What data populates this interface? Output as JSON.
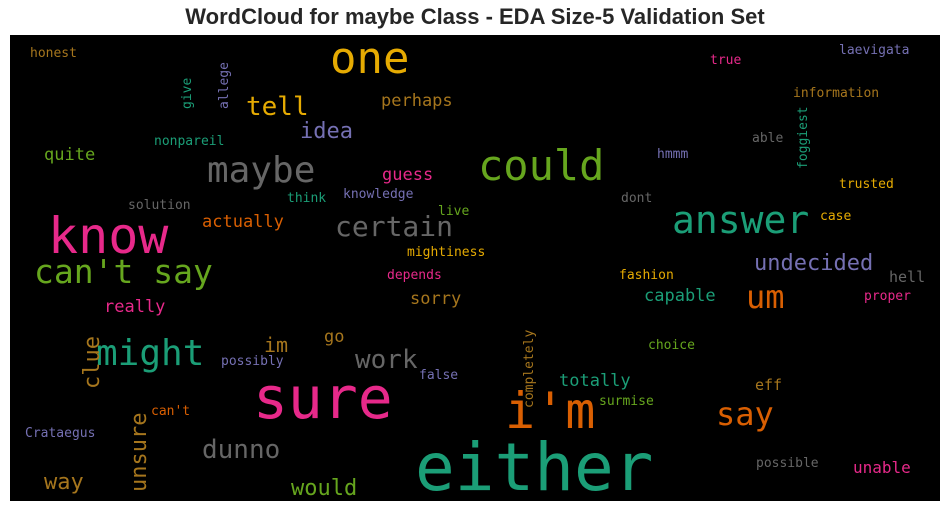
{
  "title": "WordCloud for maybe Class - EDA Size-5 Validation Set",
  "chart_data": {
    "type": "wordcloud",
    "title": "WordCloud for maybe Class - EDA Size-5 Validation Set",
    "background": "#000000",
    "palette": {
      "teal": "#1b9e77",
      "orange": "#d95f02",
      "purple": "#7570b3",
      "pink": "#e7298a",
      "green": "#66a61e",
      "gold": "#e6ab02",
      "brown": "#a6761d",
      "gray": "#666666"
    },
    "words": [
      {
        "text": "either",
        "color": "#1b9e77",
        "vertical": false
      },
      {
        "text": "sure",
        "color": "#e7298a",
        "vertical": false
      },
      {
        "text": "know",
        "color": "#e7298a",
        "vertical": false
      },
      {
        "text": "i'm",
        "color": "#d95f02",
        "vertical": false
      },
      {
        "text": "one",
        "color": "#e6ab02",
        "vertical": false
      },
      {
        "text": "could",
        "color": "#66a61e",
        "vertical": false
      },
      {
        "text": "answer",
        "color": "#1b9e77",
        "vertical": false
      },
      {
        "text": "maybe",
        "color": "#666666",
        "vertical": false
      },
      {
        "text": "might",
        "color": "#1b9e77",
        "vertical": false
      },
      {
        "text": "can't say",
        "color": "#66a61e",
        "vertical": false
      },
      {
        "text": "certain",
        "color": "#666666",
        "vertical": false
      },
      {
        "text": "work",
        "color": "#666666",
        "vertical": false
      },
      {
        "text": "say",
        "color": "#d95f02",
        "vertical": false
      },
      {
        "text": "um",
        "color": "#d95f02",
        "vertical": false
      },
      {
        "text": "dunno",
        "color": "#666666",
        "vertical": false
      },
      {
        "text": "tell",
        "color": "#e6ab02",
        "vertical": false
      },
      {
        "text": "undecided",
        "color": "#7570b3",
        "vertical": false
      },
      {
        "text": "idea",
        "color": "#7570b3",
        "vertical": false
      },
      {
        "text": "unsure",
        "color": "#a6761d",
        "vertical": true
      },
      {
        "text": "clue",
        "color": "#a6761d",
        "vertical": true
      },
      {
        "text": "im",
        "color": "#a6761d",
        "vertical": false
      },
      {
        "text": "way",
        "color": "#a6761d",
        "vertical": false
      },
      {
        "text": "would",
        "color": "#66a61e",
        "vertical": false
      },
      {
        "text": "totally",
        "color": "#1b9e77",
        "vertical": false
      },
      {
        "text": "really",
        "color": "#e7298a",
        "vertical": false
      },
      {
        "text": "quite",
        "color": "#66a61e",
        "vertical": false
      },
      {
        "text": "guess",
        "color": "#e7298a",
        "vertical": false
      },
      {
        "text": "perhaps",
        "color": "#a6761d",
        "vertical": false
      },
      {
        "text": "actually",
        "color": "#d95f02",
        "vertical": false
      },
      {
        "text": "capable",
        "color": "#1b9e77",
        "vertical": false
      },
      {
        "text": "sorry",
        "color": "#a6761d",
        "vertical": false
      },
      {
        "text": "hell",
        "color": "#666666",
        "vertical": false
      },
      {
        "text": "unable",
        "color": "#e7298a",
        "vertical": false
      },
      {
        "text": "go",
        "color": "#a6761d",
        "vertical": false
      },
      {
        "text": "eff",
        "color": "#a6761d",
        "vertical": false
      },
      {
        "text": "honest",
        "color": "#a6761d",
        "vertical": false
      },
      {
        "text": "give",
        "color": "#1b9e77",
        "vertical": true
      },
      {
        "text": "allege",
        "color": "#7570b3",
        "vertical": true
      },
      {
        "text": "nonpareil",
        "color": "#1b9e77",
        "vertical": false
      },
      {
        "text": "solution",
        "color": "#666666",
        "vertical": false
      },
      {
        "text": "think",
        "color": "#1b9e77",
        "vertical": false
      },
      {
        "text": "knowledge",
        "color": "#7570b3",
        "vertical": false
      },
      {
        "text": "live",
        "color": "#66a61e",
        "vertical": false
      },
      {
        "text": "dont",
        "color": "#666666",
        "vertical": false
      },
      {
        "text": "mightiness",
        "color": "#e6ab02",
        "vertical": false
      },
      {
        "text": "depends",
        "color": "#e7298a",
        "vertical": false
      },
      {
        "text": "fashion",
        "color": "#e6ab02",
        "vertical": false
      },
      {
        "text": "proper",
        "color": "#e7298a",
        "vertical": false
      },
      {
        "text": "laevigata",
        "color": "#7570b3",
        "vertical": false
      },
      {
        "text": "true",
        "color": "#e7298a",
        "vertical": false
      },
      {
        "text": "information",
        "color": "#a6761d",
        "vertical": false
      },
      {
        "text": "able",
        "color": "#666666",
        "vertical": false
      },
      {
        "text": "foggiest",
        "color": "#1b9e77",
        "vertical": true
      },
      {
        "text": "hmmm",
        "color": "#7570b3",
        "vertical": false
      },
      {
        "text": "trusted",
        "color": "#e6ab02",
        "vertical": false
      },
      {
        "text": "case",
        "color": "#e6ab02",
        "vertical": false
      },
      {
        "text": "possibly",
        "color": "#7570b3",
        "vertical": false
      },
      {
        "text": "false",
        "color": "#7570b3",
        "vertical": false
      },
      {
        "text": "completely",
        "color": "#a6761d",
        "vertical": true
      },
      {
        "text": "choice",
        "color": "#66a61e",
        "vertical": false
      },
      {
        "text": "surmise",
        "color": "#66a61e",
        "vertical": false
      },
      {
        "text": "can't",
        "color": "#d95f02",
        "vertical": false
      },
      {
        "text": "Crataegus",
        "color": "#7570b3",
        "vertical": false
      },
      {
        "text": "possible",
        "color": "#666666",
        "vertical": false
      }
    ]
  }
}
